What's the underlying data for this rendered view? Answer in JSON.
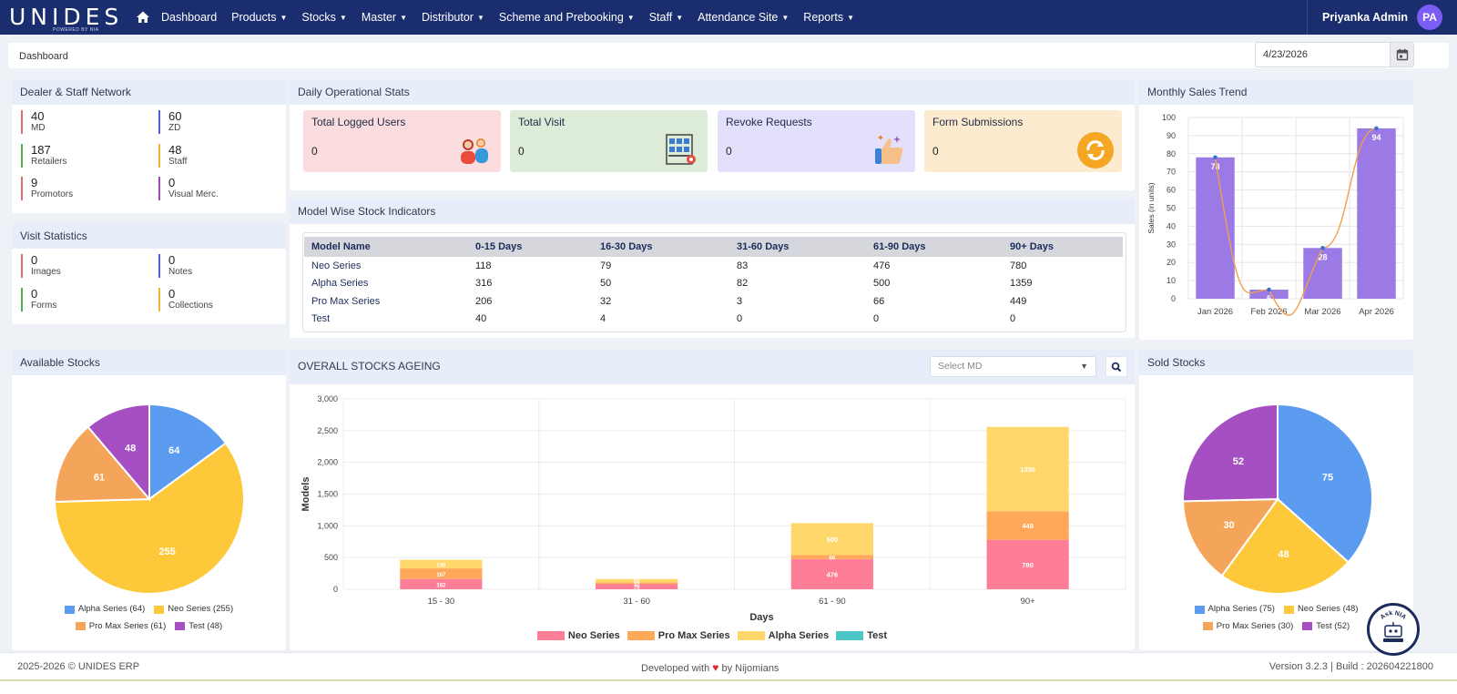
{
  "brand": {
    "logo_text": "UNIDES",
    "tagline": "POWERED BY NIA"
  },
  "nav": {
    "items": [
      {
        "label": "Dashboard",
        "chevron": false
      },
      {
        "label": "Products",
        "chevron": true
      },
      {
        "label": "Stocks",
        "chevron": true
      },
      {
        "label": "Master",
        "chevron": true
      },
      {
        "label": "Distributor",
        "chevron": true
      },
      {
        "label": "Scheme and Prebooking",
        "chevron": true
      },
      {
        "label": "Staff",
        "chevron": true
      },
      {
        "label": "Attendance Site",
        "chevron": true
      },
      {
        "label": "Reports",
        "chevron": true
      }
    ]
  },
  "user": {
    "name": "Priyanka Admin",
    "initials": "PA"
  },
  "breadcrumb": "Dashboard",
  "date_value": "4/23/2026",
  "network": {
    "title": "Dealer & Staff Network",
    "stats": [
      {
        "value": "40",
        "label": "MD",
        "color": "#e06b75"
      },
      {
        "value": "60",
        "label": "ZD",
        "color": "#4f5fd6"
      },
      {
        "value": "187",
        "label": "Retailers",
        "color": "#4caf50"
      },
      {
        "value": "48",
        "label": "Staff",
        "color": "#f0b43c"
      },
      {
        "value": "9",
        "label": "Promotors",
        "color": "#e06b75"
      },
      {
        "value": "0",
        "label": "Visual Merc.",
        "color": "#9c4fb8"
      }
    ]
  },
  "visits": {
    "title": "Visit Statistics",
    "stats": [
      {
        "value": "0",
        "label": "Images",
        "color": "#e06b75"
      },
      {
        "value": "0",
        "label": "Notes",
        "color": "#4f5fd6"
      },
      {
        "value": "0",
        "label": "Forms",
        "color": "#4caf50"
      },
      {
        "value": "0",
        "label": "Collections",
        "color": "#f0b43c"
      }
    ]
  },
  "daily": {
    "title": "Daily Operational Stats",
    "kpis": [
      {
        "title": "Total Logged Users",
        "value": "0",
        "bg": "#fbdde0",
        "icon": "users-icon"
      },
      {
        "title": "Total Visit",
        "value": "0",
        "bg": "#dcecd9",
        "icon": "visit-location-icon"
      },
      {
        "title": "Revoke Requests",
        "value": "0",
        "bg": "#e2e0fb",
        "icon": "thumbs-up-icon"
      },
      {
        "title": "Form Submissions",
        "value": "0",
        "bg": "#fdebcf",
        "icon": "refresh-icon"
      }
    ]
  },
  "model_stock": {
    "title": "Model Wise Stock Indicators",
    "headers": [
      "Model Name",
      "0-15 Days",
      "16-30 Days",
      "31-60 Days",
      "61-90 Days",
      "90+ Days"
    ],
    "rows": [
      [
        "Neo Series",
        "118",
        "79",
        "83",
        "476",
        "780"
      ],
      [
        "Alpha Series",
        "316",
        "50",
        "82",
        "500",
        "1359"
      ],
      [
        "Pro Max Series",
        "206",
        "32",
        "3",
        "66",
        "449"
      ],
      [
        "Test",
        "40",
        "4",
        "0",
        "0",
        "0"
      ]
    ]
  },
  "monthly": {
    "title": "Monthly Sales Trend"
  },
  "available": {
    "title": "Available Stocks"
  },
  "ageing": {
    "title": "OVERALL STOCKS AGEING",
    "select_placeholder": "Select MD"
  },
  "sold": {
    "title": "Sold Stocks"
  },
  "chart_data": [
    {
      "type": "bar",
      "name": "Monthly Sales Trend",
      "categories": [
        "Jan 2026",
        "Feb 2026",
        "Mar 2026",
        "Apr 2026"
      ],
      "values": [
        78,
        5,
        28,
        94
      ],
      "ylabel": "Sales (in units)",
      "ylim": [
        0,
        100
      ],
      "yticks": [
        0,
        10,
        20,
        30,
        40,
        50,
        60,
        70,
        80,
        90,
        100
      ],
      "grid": true,
      "bar_color": "#9b7ae6",
      "line_color": "#f0a04b"
    },
    {
      "type": "pie",
      "name": "Available Stocks",
      "labels": [
        "Alpha Series (64)",
        "Neo Series (255)",
        "Pro Max Series (61)",
        "Test (48)"
      ],
      "values": [
        64,
        255,
        61,
        48
      ],
      "colors": [
        "#5b9cf0",
        "#fdc93a",
        "#f5a55a",
        "#a64fc2"
      ],
      "legend": "bottom"
    },
    {
      "type": "bar",
      "stacked": true,
      "name": "OVERALL STOCKS AGEING",
      "categories": [
        "15 - 30",
        "31 - 60",
        "61 - 90",
        "90+"
      ],
      "xlabel": "Days",
      "ylabel": "Models",
      "ylim": [
        0,
        3000
      ],
      "yticks": [
        0,
        500,
        1000,
        1500,
        2000,
        2500,
        3000
      ],
      "yticklabels": [
        "0",
        "500",
        "1,000",
        "1,500",
        "2,000",
        "2,500",
        "3,000"
      ],
      "legend": "bottom",
      "series": [
        {
          "name": "Neo Series",
          "values": [
            162,
            79,
            476,
            780
          ],
          "color": "#ff7e97"
        },
        {
          "name": "Pro Max Series",
          "values": [
            167,
            32,
            66,
            449
          ],
          "color": "#ffa85a"
        },
        {
          "name": "Alpha Series",
          "values": [
            136,
            50,
            500,
            1330
          ],
          "color": "#ffd76a"
        },
        {
          "name": "Test",
          "values": [
            0,
            0,
            0,
            0
          ],
          "color": "#4cc6c6"
        }
      ]
    },
    {
      "type": "pie",
      "name": "Sold Stocks",
      "labels": [
        "Alpha Series (75)",
        "Neo Series (48)",
        "Pro Max Series (30)",
        "Test (52)"
      ],
      "values": [
        75,
        48,
        30,
        52
      ],
      "colors": [
        "#5b9cf0",
        "#fdc93a",
        "#f5a55a",
        "#a64fc2"
      ],
      "legend": "bottom"
    }
  ],
  "footer": {
    "left": "2025-2026 © UNIDES ERP",
    "center_pre": "Developed with",
    "center_post": "by Nijomians",
    "right": "Version 3.2.3 | Build : 202604221800"
  },
  "asknia": {
    "label": "Ask NIA"
  }
}
